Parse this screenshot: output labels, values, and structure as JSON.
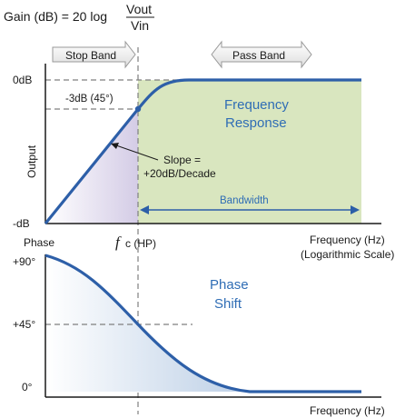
{
  "formula": {
    "prefix": "Gain (dB) = 20 log",
    "numerator": "Vout",
    "denominator": "Vin"
  },
  "bands": {
    "stop": "Stop Band",
    "pass": "Pass Band"
  },
  "top_plot": {
    "y_top": "0dB",
    "y_bottom": "-dB",
    "y_axis": "Output",
    "minus3db": "-3dB (45°)",
    "response_title_1": "Frequency",
    "response_title_2": "Response",
    "slope_1": "Slope =",
    "slope_2": "+20dB/Decade",
    "bandwidth": "Bandwidth",
    "x_axis_1": "Frequency (Hz)",
    "x_axis_2": "(Logarithmic Scale)"
  },
  "fc_label": {
    "symbol": "f",
    "subscript": "c (HP)"
  },
  "bottom_plot": {
    "y_axis": "Phase",
    "y_ticks": [
      "+90°",
      "+45°",
      "0°"
    ],
    "title_1": "Phase",
    "title_2": "Shift",
    "x_axis": "Frequency (Hz)"
  },
  "colors": {
    "curve": "#2d5fa8",
    "pass_fill": "#d9e6bf",
    "stop_fill": "#dcd6ea",
    "phase_fill": "#c5d6ea",
    "dashed": "#7f7f7f",
    "band_fill": "#f0f0f0",
    "band_stroke": "#999999",
    "accent_text": "#2f6db5"
  }
}
